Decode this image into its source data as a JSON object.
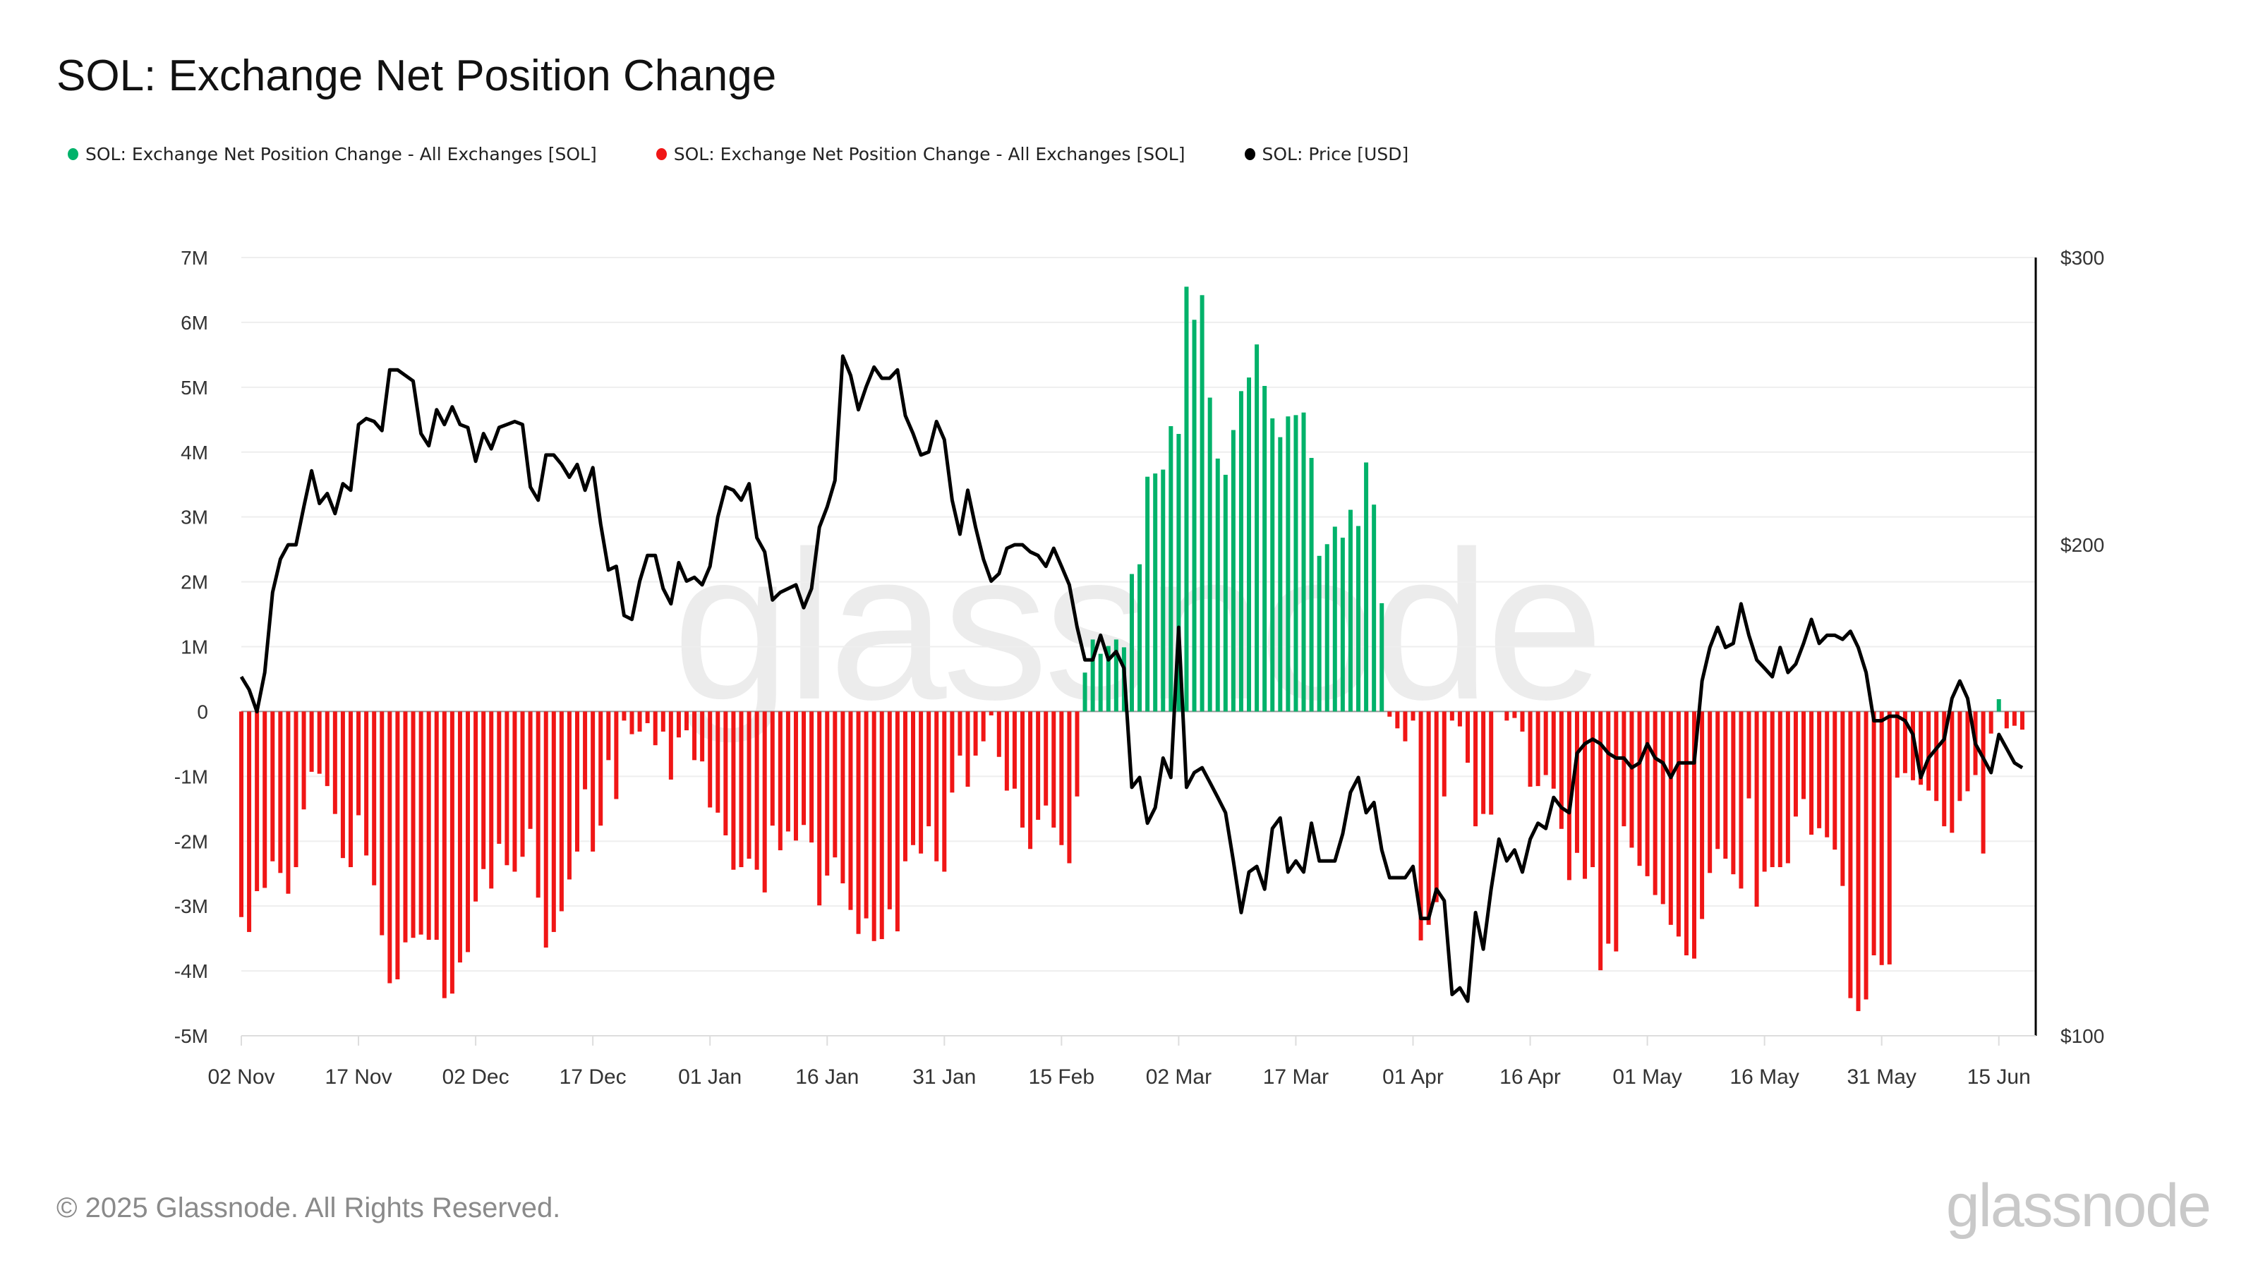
{
  "chart_data": {
    "type": "bar",
    "title": "SOL: Exchange Net Position Change",
    "legend": [
      {
        "label": "SOL: Exchange Net Position Change - All Exchanges [SOL]",
        "color": "#00b26a"
      },
      {
        "label": "SOL: Exchange Net Position Change - All Exchanges [SOL]",
        "color": "#f01616"
      },
      {
        "label": "SOL: Price [USD]",
        "color": "#000000"
      }
    ],
    "legend_position": "top-left",
    "x_start": "02 Nov",
    "x_unit": "day",
    "x_ticks": [
      {
        "day": 0,
        "label": "02 Nov"
      },
      {
        "day": 15,
        "label": "17 Nov"
      },
      {
        "day": 30,
        "label": "02 Dec"
      },
      {
        "day": 45,
        "label": "17 Dec"
      },
      {
        "day": 60,
        "label": "01 Jan"
      },
      {
        "day": 75,
        "label": "16 Jan"
      },
      {
        "day": 90,
        "label": "31 Jan"
      },
      {
        "day": 105,
        "label": "15 Feb"
      },
      {
        "day": 120,
        "label": "02 Mar"
      },
      {
        "day": 135,
        "label": "17 Mar"
      },
      {
        "day": 150,
        "label": "01 Apr"
      },
      {
        "day": 165,
        "label": "16 Apr"
      },
      {
        "day": 180,
        "label": "01 May"
      },
      {
        "day": 195,
        "label": "16 May"
      },
      {
        "day": 210,
        "label": "31 May"
      },
      {
        "day": 225,
        "label": "15 Jun"
      }
    ],
    "y_left": {
      "unit": "M SOL",
      "ylim": [
        -5,
        7
      ],
      "ticks": [
        {
          "v": 7,
          "label": "7M"
        },
        {
          "v": 6,
          "label": "6M"
        },
        {
          "v": 5,
          "label": "5M"
        },
        {
          "v": 4,
          "label": "4M"
        },
        {
          "v": 3,
          "label": "3M"
        },
        {
          "v": 2,
          "label": "2M"
        },
        {
          "v": 1,
          "label": "1M"
        },
        {
          "v": 0,
          "label": "0"
        },
        {
          "v": -1,
          "label": "-1M"
        },
        {
          "v": -2,
          "label": "-2M"
        },
        {
          "v": -3,
          "label": "-3M"
        },
        {
          "v": -4,
          "label": "-4M"
        },
        {
          "v": -5,
          "label": "-5M"
        }
      ]
    },
    "y_right": {
      "unit": "USD",
      "scale": "log",
      "ylim": [
        100,
        300
      ],
      "ticks": [
        {
          "v": 300,
          "label": "$300"
        },
        {
          "v": 200,
          "label": "$200"
        },
        {
          "v": 100,
          "label": "$100"
        }
      ]
    },
    "grid": true,
    "net_position_change_millions": [
      -3.17,
      -3.4,
      -2.77,
      -2.72,
      -2.31,
      -2.49,
      -2.81,
      -2.4,
      -1.51,
      -0.93,
      -0.96,
      -1.15,
      -1.58,
      -2.26,
      -2.4,
      -1.6,
      -2.22,
      -2.68,
      -3.45,
      -4.19,
      -4.13,
      -3.56,
      -3.49,
      -3.44,
      -3.52,
      -3.52,
      -4.42,
      -4.35,
      -3.87,
      -3.71,
      -2.93,
      -2.43,
      -2.73,
      -2.04,
      -2.37,
      -2.47,
      -2.24,
      -1.81,
      -2.87,
      -3.64,
      -3.4,
      -3.08,
      -2.59,
      -2.16,
      -1.2,
      -2.16,
      -1.76,
      -0.75,
      -1.35,
      -0.14,
      -0.35,
      -0.31,
      -0.18,
      -0.52,
      -0.31,
      -1.05,
      -0.4,
      -0.29,
      -0.75,
      -0.77,
      -1.48,
      -1.56,
      -1.91,
      -2.44,
      -2.4,
      -2.27,
      -2.44,
      -2.79,
      -1.76,
      -2.14,
      -1.85,
      -1.99,
      -1.75,
      -2.02,
      -2.99,
      -2.53,
      -2.25,
      -2.65,
      -3.06,
      -3.43,
      -3.19,
      -3.54,
      -3.51,
      -3.05,
      -3.39,
      -2.31,
      -2.06,
      -2.19,
      -1.77,
      -2.31,
      -2.47,
      -1.25,
      -0.68,
      -1.16,
      -0.68,
      -0.46,
      -0.06,
      -0.7,
      -1.22,
      -1.19,
      -1.79,
      -2.12,
      -1.67,
      -1.45,
      -1.79,
      -2.06,
      -2.34,
      -1.31,
      0.6,
      1.11,
      0.89,
      1.01,
      1.11,
      0.99,
      2.12,
      2.27,
      3.62,
      3.67,
      3.73,
      4.4,
      4.28,
      6.55,
      6.04,
      6.42,
      4.84,
      3.9,
      3.65,
      4.34,
      4.94,
      5.15,
      5.66,
      5.02,
      4.52,
      4.23,
      4.55,
      4.57,
      4.61,
      3.91,
      2.4,
      2.58,
      2.85,
      2.68,
      3.11,
      2.86,
      3.84,
      3.19,
      1.67,
      -0.08,
      -0.26,
      -0.46,
      -0.14,
      -3.53,
      -3.29,
      -2.94,
      -1.31,
      -0.14,
      -0.23,
      -0.79,
      -1.77,
      -1.58,
      -1.59,
      0,
      -0.14,
      -0.1,
      -0.31,
      -1.16,
      -1.15,
      -0.98,
      -1.19,
      -1.81,
      -2.6,
      -2.18,
      -2.58,
      -2.4,
      -3.99,
      -3.58,
      -3.7,
      -1.77,
      -2.1,
      -2.38,
      -2.54,
      -2.83,
      -2.97,
      -3.29,
      -3.47,
      -3.76,
      -3.81,
      -3.2,
      -2.49,
      -2.12,
      -2.27,
      -2.51,
      -2.73,
      -1.34,
      -3.01,
      -2.47,
      -2.4,
      -2.4,
      -2.34,
      -1.62,
      -1.35,
      -1.9,
      -1.8,
      -1.94,
      -2.13,
      -2.69,
      -4.42,
      -4.62,
      -4.44,
      -3.76,
      -3.91,
      -3.9,
      -1.02,
      -0.95,
      -1.06,
      -1.13,
      -1.22,
      -1.38,
      -1.77,
      -1.87,
      -1.38,
      -1.23,
      -0.98,
      -2.19,
      -0.34,
      0.19,
      -0.26,
      -0.22,
      -0.28
    ],
    "price_usd": [
      166,
      163,
      158,
      167,
      187,
      196,
      200,
      200,
      211,
      222,
      212,
      215,
      209,
      218,
      216,
      237,
      239,
      238,
      235,
      256,
      256,
      254,
      252,
      234,
      230,
      242,
      237,
      243,
      237,
      236,
      225,
      234,
      229,
      236,
      237,
      238,
      237,
      217,
      213,
      227,
      227,
      224,
      220,
      224,
      216,
      223,
      206,
      193,
      194,
      181,
      180,
      190,
      197,
      197,
      188,
      184,
      195,
      190,
      191,
      189,
      194,
      208,
      217,
      216,
      213,
      218,
      202,
      198,
      185,
      187,
      188,
      189,
      183,
      188,
      205,
      211,
      219,
      261,
      254,
      242,
      250,
      257,
      253,
      253,
      256,
      240,
      234,
      227,
      228,
      238,
      232,
      213,
      203,
      216,
      205,
      196,
      190,
      192,
      199,
      200,
      200,
      198,
      197,
      194,
      199,
      194,
      189,
      178,
      170,
      170,
      176,
      170,
      172,
      168,
      142,
      144,
      135,
      138,
      148,
      144,
      178,
      142,
      145,
      146,
      143,
      140,
      137,
      128,
      119,
      126,
      127,
      123,
      134,
      136,
      126,
      128,
      126,
      135,
      128,
      128,
      128,
      133,
      141,
      144,
      137,
      139,
      130,
      125,
      125,
      125,
      127,
      118,
      118,
      123,
      121,
      106,
      107,
      105,
      119,
      113,
      123,
      132,
      128,
      130,
      126,
      132,
      135,
      134,
      140,
      138,
      137,
      149,
      151,
      152,
      151,
      149,
      148,
      148,
      146,
      147,
      151,
      148,
      147,
      144,
      147,
      147,
      147,
      165,
      173,
      178,
      173,
      174,
      184,
      176,
      170,
      168,
      166,
      173,
      167,
      169,
      174,
      180,
      174,
      176,
      176,
      175,
      177,
      173,
      167,
      156,
      156,
      157,
      157,
      156,
      153,
      144,
      148,
      150,
      152,
      161,
      165,
      161,
      151,
      148,
      145,
      153,
      150,
      147,
      146
    ]
  },
  "watermark": "glassnode",
  "footer": {
    "copyright": "© 2025 Glassnode. All Rights Reserved.",
    "logo": "glassnode"
  }
}
